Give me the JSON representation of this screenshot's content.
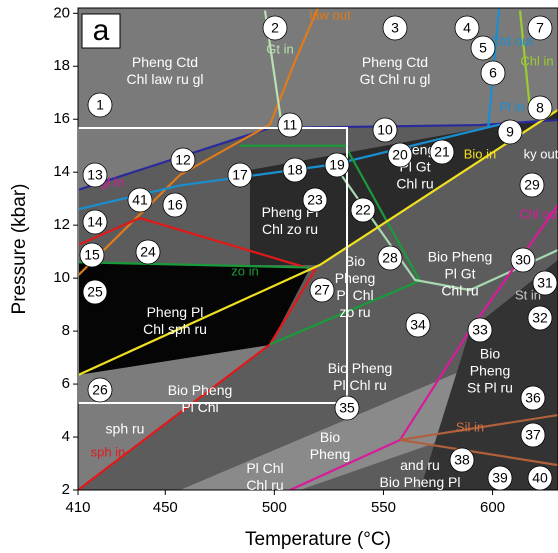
{
  "chart_data": {
    "type": "phase_diagram",
    "panel_label": "a",
    "x_label": "Temperature (°C)",
    "y_label": "Pressure (kbar)",
    "xlim": [
      410,
      630
    ],
    "ylim": [
      2,
      20.2
    ],
    "xticks": [
      410,
      450,
      500,
      550,
      600
    ],
    "yticks": [
      2,
      4,
      6,
      8,
      10,
      12,
      14,
      16,
      18,
      20
    ],
    "boundaries": [
      {
        "color": "#2a2a9a",
        "x": [
          410,
          498,
          594.3,
          630
        ],
        "y": [
          13.33,
          15.67,
          15.78,
          15.97
        ]
      },
      {
        "color": "#e07b1a",
        "x": [
          410,
          456.8,
          498,
          509.5,
          520
        ],
        "y": [
          10.1,
          13.9,
          15.8,
          18.2,
          20.2
        ]
      },
      {
        "color": "#b8e0b0",
        "x": [
          503.5,
          495.7
        ],
        "y": [
          15.7,
          20.1
        ]
      },
      {
        "color": "#1a8fd0",
        "x": [
          410,
          456.8,
          527.8,
          603.4
        ],
        "y": [
          12.6,
          13.5,
          14.3,
          15.8
        ]
      },
      {
        "color": "#1a8fd0",
        "x": [
          598,
          603
        ],
        "y": [
          15.7,
          20.2
        ]
      },
      {
        "color": "#9acd32",
        "x": [
          612.6,
          617.2
        ],
        "y": [
          20.1,
          16.35
        ]
      },
      {
        "color": "#e01a1a",
        "x": [
          410,
          438.4,
          518.6,
          498,
          410
        ],
        "y": [
          11.25,
          12.27,
          10.3,
          7.5,
          2
        ]
      },
      {
        "color": "#1a9a3a",
        "x": [
          410,
          516.3
        ],
        "y": [
          10.6,
          10.4
        ]
      },
      {
        "color": "#1a9a3a",
        "x": [
          484.3,
          532.4,
          566.7,
          498
        ],
        "y": [
          15,
          15,
          9.9,
          7.5
        ]
      },
      {
        "color": "#a8d8b0",
        "x": [
          525.5,
          564.5,
          589.7,
          630
        ],
        "y": [
          14.5,
          9.93,
          9.55,
          11.06
        ]
      },
      {
        "color": "#f0e020",
        "x": [
          410,
          520.9,
          630
        ],
        "y": [
          6.34,
          10.5,
          16.35
        ]
      },
      {
        "color": "#d81b9a",
        "x": [
          507.2,
          557.6,
          589.7,
          630
        ],
        "y": [
          2,
          3.89,
          8.04,
          12.76
        ]
      },
      {
        "color": "#b0603a",
        "x": [
          557.6,
          630
        ],
        "y": [
          3.89,
          4.83
        ]
      },
      {
        "color": "#b0603a",
        "x": [
          557.6,
          630
        ],
        "y": [
          3.89,
          2.94
        ]
      }
    ],
    "reaction_labels": [
      {
        "text": "law out",
        "color": "#e07b1a"
      },
      {
        "text": "Gt in",
        "color": "#b8e0b0"
      },
      {
        "text": "Ctd out",
        "color": "#1a8fd0"
      },
      {
        "text": "Chl in",
        "color": "#9acd32"
      },
      {
        "text": "Pl in",
        "color": "#1a8fd0"
      },
      {
        "text": "ky out",
        "color": "#ffffff"
      },
      {
        "text": "Bio in",
        "color": "#f0e020"
      },
      {
        "text": "gl in",
        "color": "#d81b9a"
      },
      {
        "text": "zo in",
        "color": "#1a9a3a"
      },
      {
        "text": "Chl out",
        "color": "#d81b9a"
      },
      {
        "text": "St in",
        "color": "#c8c8c8"
      },
      {
        "text": "sph in",
        "color": "#e01a1a"
      },
      {
        "text": "Sil in",
        "color": "#d07040"
      }
    ],
    "field_labels": [
      [
        "Pheng Ctd",
        "Chl law ru gl"
      ],
      [
        "Pheng Ctd",
        "Gt Chl ru gl"
      ],
      [
        "Pheng",
        "Pl Gt",
        "Chl ru"
      ],
      [
        "Pheng Pl",
        "Chl zo ru"
      ],
      [
        "Bio Pheng",
        "Pl Gt",
        "Chl ru"
      ],
      [
        "Bio",
        "Pheng",
        "Pl Chl",
        "zo ru"
      ],
      [
        "Pheng Pl",
        "Chl sph ru"
      ],
      [
        "Bio Pheng",
        "Pl Chl ru"
      ],
      [
        "Bio Pheng",
        "Pl Chl"
      ],
      [
        "sph ru"
      ],
      [
        "Bio",
        "Pheng",
        "St Pl ru"
      ],
      [
        "Bio",
        "Pheng"
      ],
      [
        "Pl Chl",
        "Chl ru"
      ],
      [
        "and ru",
        "Bio Pheng Pl"
      ]
    ],
    "field_numbers": [
      "1",
      "2",
      "3",
      "4",
      "5",
      "6",
      "7",
      "8",
      "9",
      "10",
      "11",
      "12",
      "13",
      "14",
      "15",
      "16",
      "17",
      "18",
      "19",
      "20",
      "21",
      "22",
      "23",
      "24",
      "25",
      "26",
      "27",
      "28",
      "29",
      "30",
      "31",
      "32",
      "33",
      "34",
      "35",
      "36",
      "37",
      "38",
      "39",
      "40",
      "41"
    ]
  }
}
